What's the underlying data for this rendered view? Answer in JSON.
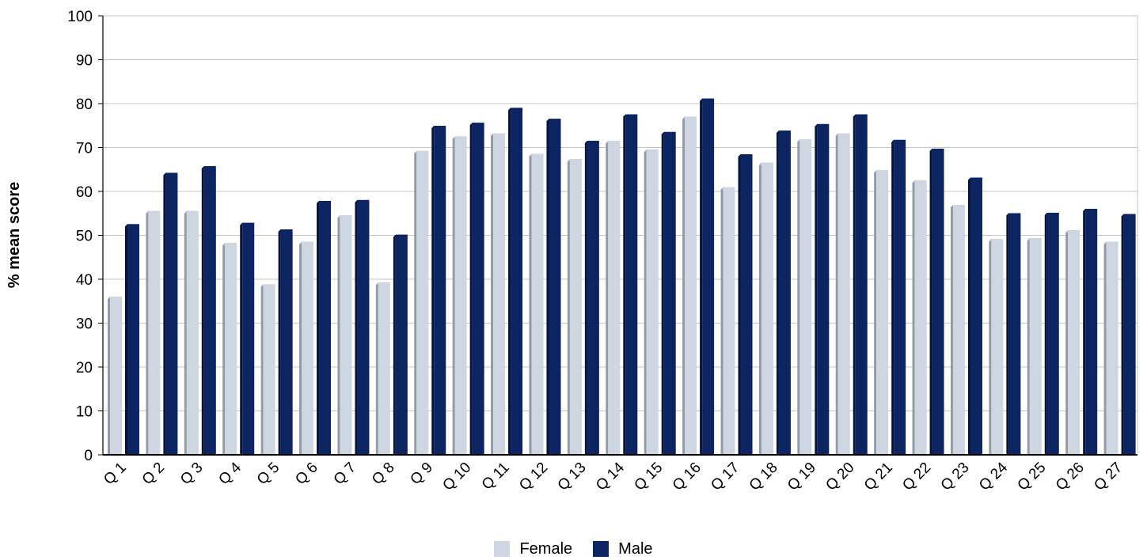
{
  "chart_data": {
    "type": "bar",
    "ylabel": "% mean score",
    "xlabel": "",
    "ylim": [
      0,
      100
    ],
    "yticks": [
      0,
      10,
      20,
      30,
      40,
      50,
      60,
      70,
      80,
      90,
      100
    ],
    "grid": true,
    "legend_position": "bottom",
    "categories": [
      "Q 1",
      "Q 2",
      "Q 3",
      "Q 4",
      "Q 5",
      "Q 6",
      "Q 7",
      "Q 8",
      "Q 9",
      "Q 10",
      "Q 11",
      "Q 12",
      "Q 13",
      "Q 14",
      "Q 15",
      "Q 16",
      "Q 17",
      "Q 18",
      "Q 19",
      "Q 20",
      "Q 21",
      "Q 22",
      "Q 23",
      "Q 24",
      "Q 25",
      "Q 26",
      "Q 27"
    ],
    "series": [
      {
        "name": "Female",
        "color": "#ced6e1",
        "values": [
          35.5,
          55,
          55,
          47.7,
          38.3,
          48,
          54,
          38.7,
          68.7,
          72,
          72.7,
          68,
          66.8,
          71,
          69,
          76.5,
          60.4,
          66,
          71.3,
          72.7,
          64.3,
          62,
          56.4,
          48.6,
          48.8,
          50.6,
          48
        ]
      },
      {
        "name": "Male",
        "color": "#0c2461",
        "values": [
          52,
          63.7,
          65.2,
          52.3,
          50.8,
          57.3,
          57.5,
          49.6,
          74.4,
          75.1,
          78.5,
          76,
          71,
          77,
          73,
          80.6,
          67.9,
          73.3,
          74.8,
          77,
          71.2,
          69.2,
          62.6,
          54.5,
          54.6,
          55.5,
          54.3
        ]
      }
    ]
  }
}
